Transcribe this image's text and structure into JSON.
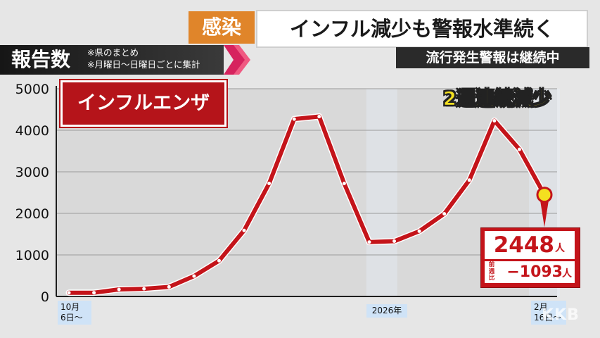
{
  "header": {
    "category": "感染",
    "headline": "インフル減少も警報水準続く"
  },
  "report": {
    "title": "報告数",
    "note1": "※県のまとめ",
    "note2": "※月曜日〜日曜日ごとに集計"
  },
  "alert": "流行発生警報は継続中",
  "chart_data": {
    "type": "line",
    "title": "",
    "ylabel": "",
    "xlabel": "",
    "ylim": [
      0,
      5000
    ],
    "yticks": [
      0,
      1000,
      2000,
      3000,
      4000,
      5000
    ],
    "series_label": "インフルエンザ",
    "series": [
      {
        "name": "インフルエンザ",
        "color": "#c4141a",
        "values": [
          90,
          90,
          170,
          185,
          230,
          490,
          860,
          1590,
          2720,
          4270,
          4330,
          2720,
          1310,
          1330,
          1570,
          1990,
          2800,
          4230,
          3541,
          2448
        ]
      }
    ],
    "x_labels": [
      {
        "index": 0,
        "text": "10月\n6日〜",
        "line1": "10月",
        "line2": "6日〜"
      },
      {
        "index": 12.5,
        "text": "2026年"
      },
      {
        "index": 19,
        "text": "2月\n16日〜",
        "line1": "2月",
        "line2": "16日〜"
      }
    ],
    "grid": true,
    "annotation": {
      "trend": "2週連続減少",
      "value": "2448",
      "unit": "人",
      "diff_label": "前週比",
      "diff": "−1093",
      "diff_unit": "人"
    }
  },
  "watermark": "KKB",
  "colors": {
    "accent": "#c4141a",
    "highlight_point": "#f4e020",
    "banner_orange": "#e0852a"
  }
}
